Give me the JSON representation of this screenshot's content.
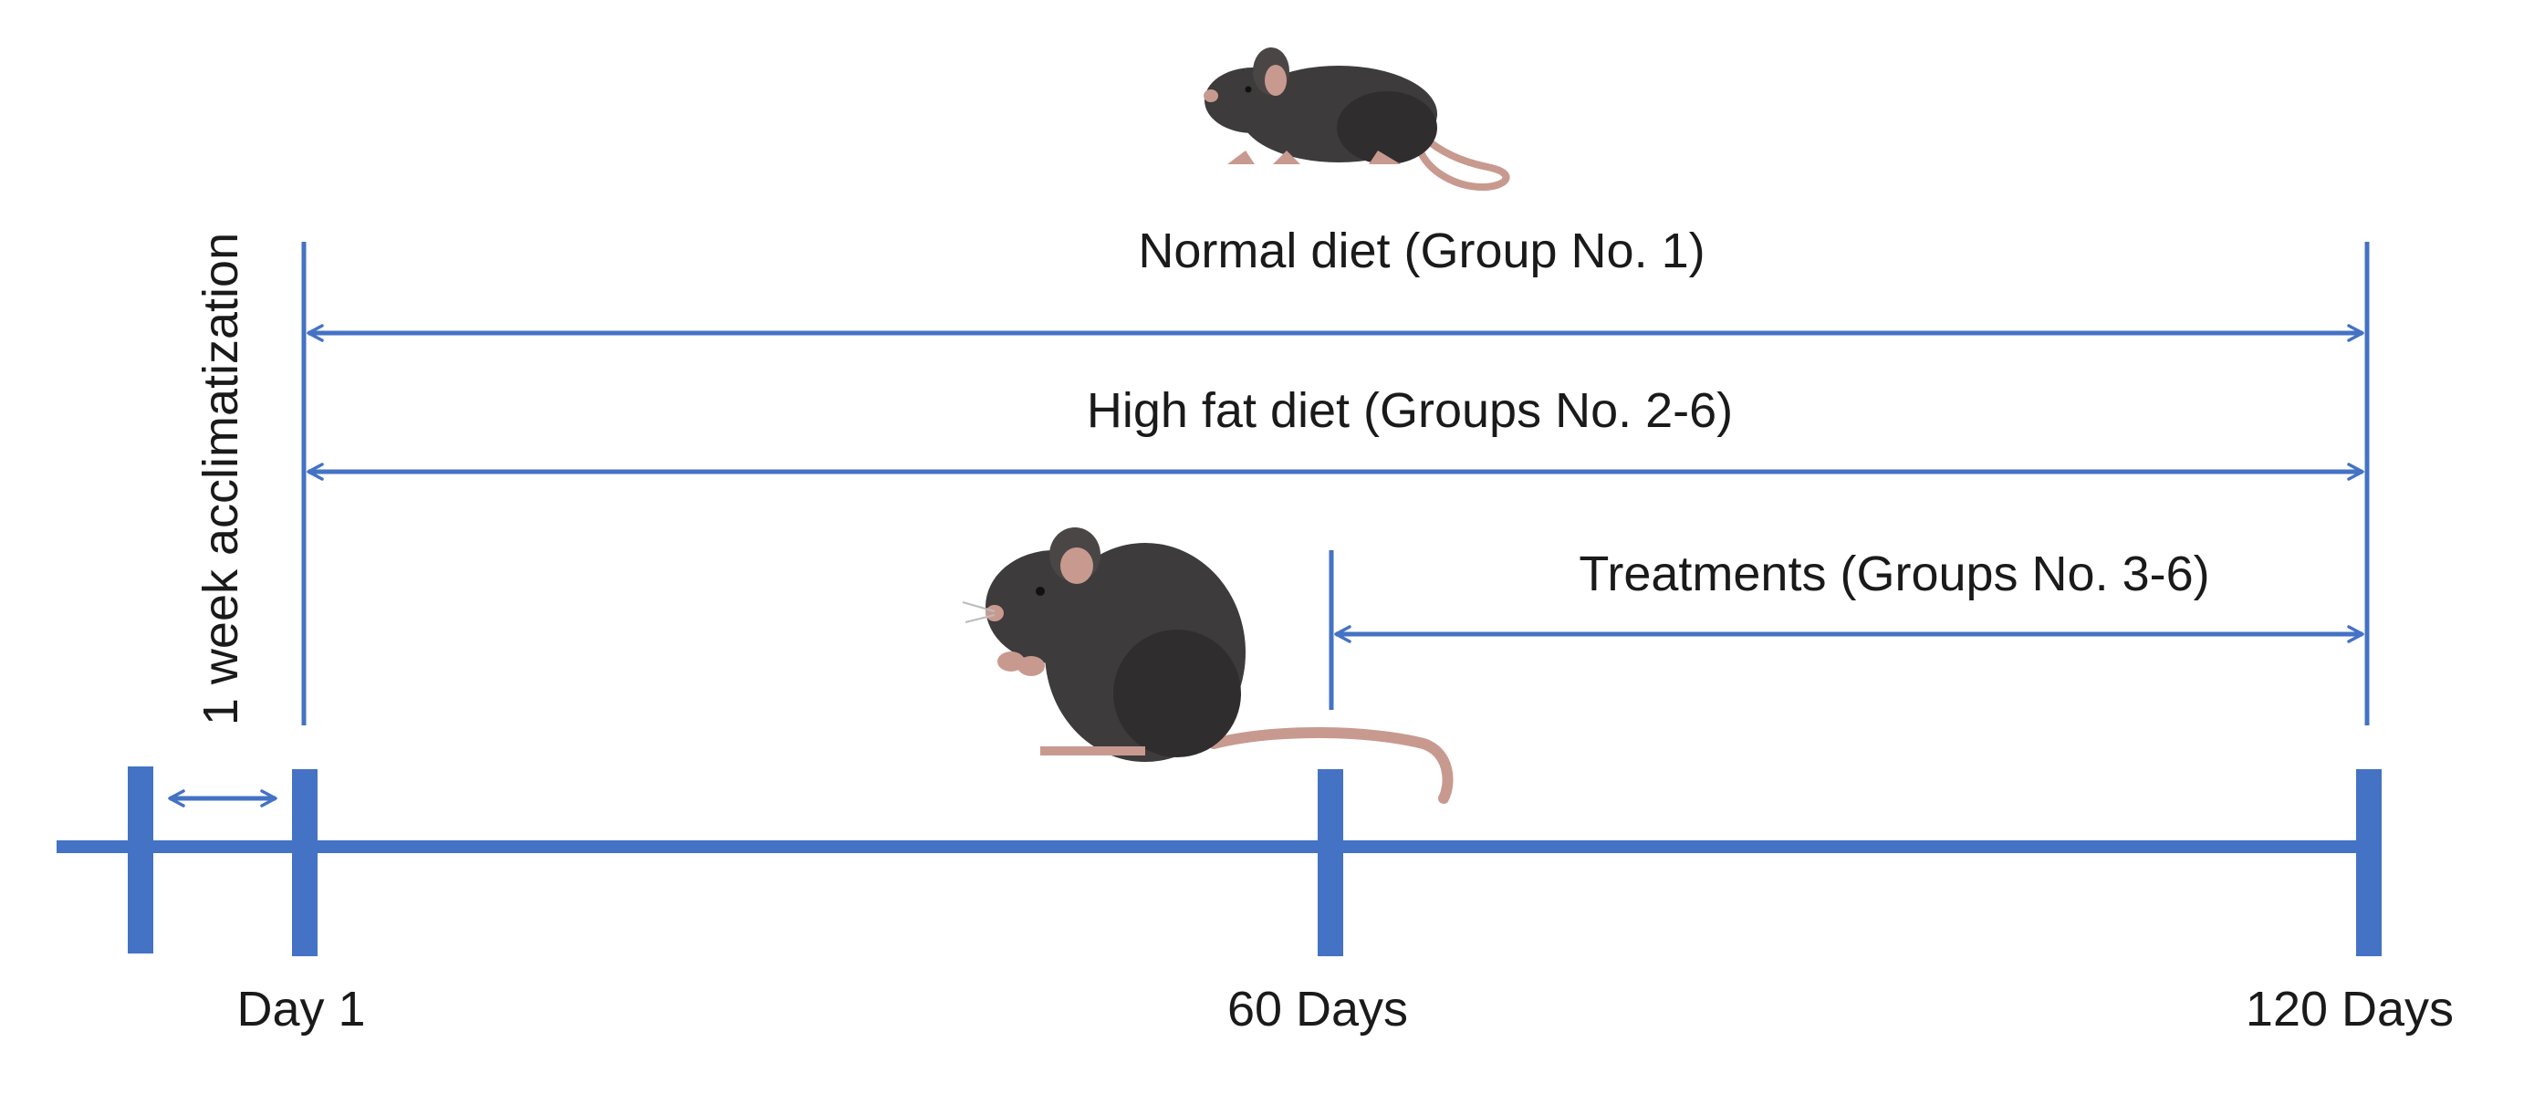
{
  "colors": {
    "line": "#4472C4",
    "mouse_body": "#3d3b3b",
    "mouse_shade": "#2f2d2d",
    "mouse_pink": "#c89a8f",
    "text": "#1a1a1a"
  },
  "icons": [
    "mouse-walking-icon",
    "mouse-sitting-icon"
  ],
  "labels": {
    "acclimatization": "1 week acclimatization",
    "normal_diet": "Normal diet (Group No. 1)",
    "high_fat_diet": "High fat diet (Groups No. 2-6)",
    "treatments": "Treatments (Groups No. 3-6)"
  },
  "ticks": {
    "day1": "Day 1",
    "day60": "60 Days",
    "day120": "120 Days"
  }
}
